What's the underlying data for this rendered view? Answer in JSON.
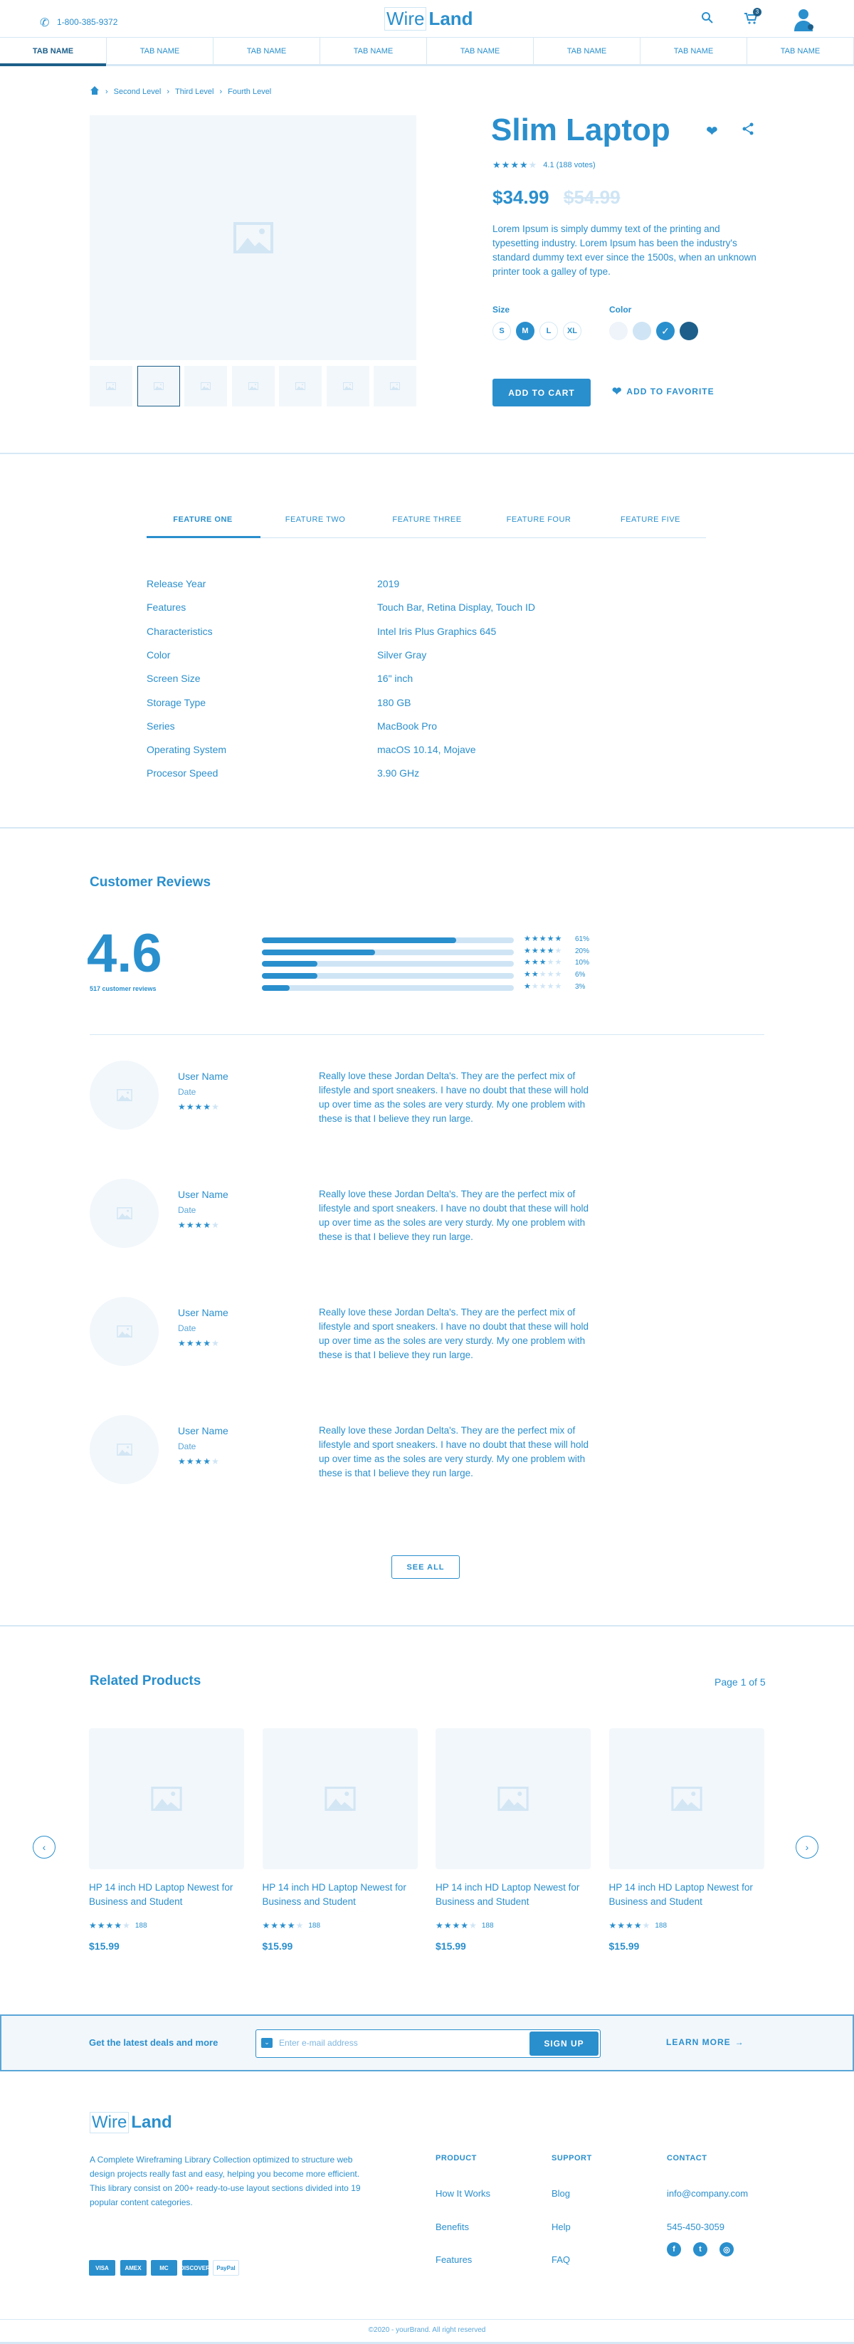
{
  "header": {
    "phone": "1-800-385-9372",
    "logo_left": "Wire",
    "logo_right": "Land",
    "cart_count": "3",
    "icons": [
      "phone-icon",
      "search-icon",
      "cart-icon",
      "user-avatar-icon"
    ]
  },
  "tabs": [
    "TAB NAME",
    "TAB NAME",
    "TAB NAME",
    "TAB NAME",
    "TAB NAME",
    "TAB NAME",
    "TAB NAME",
    "TAB NAME"
  ],
  "breadcrumb": [
    "Second Level",
    "Third Level",
    "Fourth Level"
  ],
  "product": {
    "title": "Slim Laptop",
    "rating_stars": 4,
    "rating_text": "4.1 (188 votes)",
    "price": "$34.99",
    "old_price": "$54.99",
    "description": "Lorem Ipsum is simply dummy text of the printing and typesetting industry. Lorem Ipsum has been the industry's standard dummy text ever since the 1500s, when an unknown printer took a galley of type.",
    "size_label": "Size",
    "sizes": [
      "S",
      "M",
      "L",
      "XL"
    ],
    "selected_size": "M",
    "color_label": "Color",
    "colors": [
      "#eef4fa",
      "#cfe5f5",
      "#2a8fcd",
      "#1d5f8a"
    ],
    "selected_color": 2,
    "thumbnail_count": 7,
    "selected_thumbnail": 1,
    "add_to_cart": "ADD TO CART",
    "add_to_favorite": "ADD TO FAVORITE"
  },
  "features": {
    "tabs": [
      "FEATURE ONE",
      "FEATURE TWO",
      "FEATURE THREE",
      "FEATURE FOUR",
      "FEATURE FIVE"
    ],
    "active": 0,
    "specs": [
      {
        "label": "Release Year",
        "value": "2019"
      },
      {
        "label": "Features",
        "value": "Touch Bar, Retina Display, Touch ID"
      },
      {
        "label": "Characteristics",
        "value": "Intel Iris Plus Graphics 645"
      },
      {
        "label": "Color",
        "value": "Silver Gray"
      },
      {
        "label": "Screen Size",
        "value": "16\" inch"
      },
      {
        "label": "Storage Type",
        "value": "180 GB"
      },
      {
        "label": "Series",
        "value": "MacBook Pro"
      },
      {
        "label": "Operating System",
        "value": "macOS 10.14, Mojave"
      },
      {
        "label": "Procesor Speed",
        "value": "3.90 GHz"
      }
    ]
  },
  "reviews": {
    "title": "Customer Reviews",
    "score": "4.6",
    "count_text": "517 customer reviews",
    "breakdown": [
      {
        "stars": 5,
        "percent": "61%",
        "fill": 0.77
      },
      {
        "stars": 4,
        "percent": "20%",
        "fill": 0.45
      },
      {
        "stars": 3,
        "percent": "10%",
        "fill": 0.22
      },
      {
        "stars": 2,
        "percent": "6%",
        "fill": 0.22
      },
      {
        "stars": 1,
        "percent": "3%",
        "fill": 0.11
      }
    ],
    "items": [
      {
        "name": "User Name",
        "date": "Date",
        "stars": 4,
        "text": "Really love these Jordan Delta's. They are the perfect mix of lifestyle and sport sneakers. I have no doubt that these will hold up over time as the soles are very sturdy. My one problem with these is that I believe they run large."
      },
      {
        "name": "User Name",
        "date": "Date",
        "stars": 4,
        "text": "Really love these Jordan Delta's. They are the perfect mix of lifestyle and sport sneakers. I have no doubt that these will hold up over time as the soles are very sturdy. My one problem with these is that I believe they run large."
      },
      {
        "name": "User Name",
        "date": "Date",
        "stars": 4,
        "text": "Really love these Jordan Delta's. They are the perfect mix of lifestyle and sport sneakers. I have no doubt that these will hold up over time as the soles are very sturdy. My one problem with these is that I believe they run large."
      },
      {
        "name": "User Name",
        "date": "Date",
        "stars": 4,
        "text": "Really love these Jordan Delta's. They are the perfect mix of lifestyle and sport sneakers. I have no doubt that these will hold up over time as the soles are very sturdy. My one problem with these is that I believe they run large."
      }
    ],
    "see_all": "SEE ALL"
  },
  "related": {
    "title": "Related Products",
    "page": "Page 1 of 5",
    "items": [
      {
        "title": "HP 14 inch HD Laptop Newest for Business and Student",
        "stars": 4,
        "votes": "188",
        "price": "$15.99"
      },
      {
        "title": "HP 14 inch HD Laptop Newest for Business and Student",
        "stars": 4,
        "votes": "188",
        "price": "$15.99"
      },
      {
        "title": "HP 14 inch HD Laptop Newest for Business and Student",
        "stars": 4,
        "votes": "188",
        "price": "$15.99"
      },
      {
        "title": "HP 14 inch HD Laptop Newest for Business and Student",
        "stars": 4,
        "votes": "188",
        "price": "$15.99"
      }
    ]
  },
  "newsletter": {
    "text": "Get the latest deals and more",
    "placeholder": "Enter e-mail address",
    "button": "SIGN UP",
    "learn_more": "LEARN MORE"
  },
  "footer": {
    "logo_left": "Wire",
    "logo_right": "Land",
    "description": "A Complete Wireframing Library Collection optimized to structure web design projects really fast and easy, helping you become more efficient. This library consist on 200+ ready-to-use layout sections divided into 19 popular content categories.",
    "payments": [
      "VISA",
      "AMEX",
      "MC",
      "DISCOVER",
      "PayPal"
    ],
    "columns": [
      {
        "title": "PRODUCT",
        "links": [
          "How It Works",
          "Benefits",
          "Features"
        ]
      },
      {
        "title": "SUPPORT",
        "links": [
          "Blog",
          "Help",
          "FAQ"
        ]
      },
      {
        "title": "CONTACT",
        "links": [
          "info@company.com",
          "545-450-3059"
        ]
      }
    ],
    "social": [
      "f",
      "t",
      "ig"
    ],
    "copyright": "©2020 - yourBrand. All right reserved"
  },
  "colors": {
    "primary": "#2a8fcd",
    "light": "#cfe5f5",
    "dark": "#1d5f8a",
    "placeholder": "#f2f7fb"
  }
}
